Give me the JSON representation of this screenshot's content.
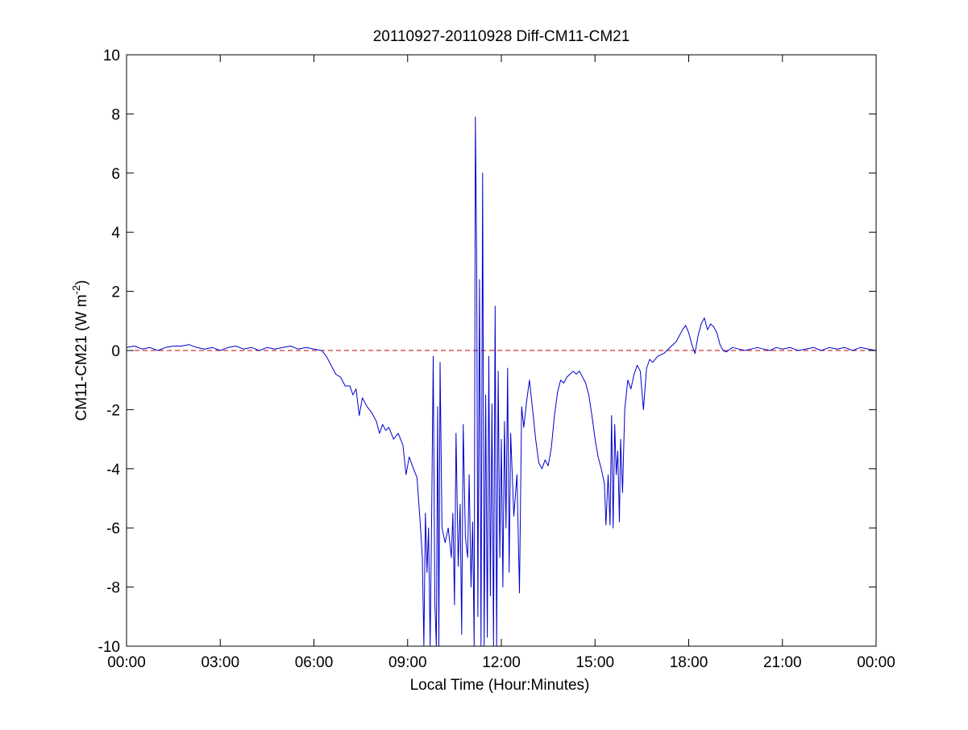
{
  "chart_data": {
    "type": "line",
    "title": "20110927-20110928 Diff-CM11-CM21",
    "xlabel": "Local Time (Hour:Minutes)",
    "ylabel": {
      "main": "CM11-CM21 (W m",
      "superscript": "-2",
      "suffix": ")"
    },
    "x_unit": "hours",
    "xlim": [
      0,
      24
    ],
    "ylim": [
      -10,
      10
    ],
    "x_ticks": [
      0,
      3,
      6,
      9,
      12,
      15,
      18,
      21,
      24
    ],
    "x_tick_labels": [
      "00:00",
      "03:00",
      "06:00",
      "09:00",
      "12:00",
      "15:00",
      "18:00",
      "21:00",
      "00:00"
    ],
    "y_ticks": [
      -10,
      -8,
      -6,
      -4,
      -2,
      0,
      2,
      4,
      6,
      8,
      10
    ],
    "y_tick_labels": [
      "-10",
      "-8",
      "-6",
      "-4",
      "-2",
      "0",
      "2",
      "4",
      "6",
      "8",
      "10"
    ],
    "grid": false,
    "reference_line": {
      "y": 0,
      "style": "dashed",
      "color": "#cc0000"
    },
    "series": [
      {
        "color": "#0000cc",
        "points": [
          [
            0.0,
            0.1
          ],
          [
            0.25,
            0.15
          ],
          [
            0.5,
            0.05
          ],
          [
            0.75,
            0.1
          ],
          [
            1.0,
            0.0
          ],
          [
            1.25,
            0.1
          ],
          [
            1.5,
            0.15
          ],
          [
            1.75,
            0.15
          ],
          [
            2.0,
            0.2
          ],
          [
            2.25,
            0.1
          ],
          [
            2.5,
            0.05
          ],
          [
            2.75,
            0.1
          ],
          [
            3.0,
            0.0
          ],
          [
            3.25,
            0.1
          ],
          [
            3.5,
            0.15
          ],
          [
            3.75,
            0.05
          ],
          [
            4.0,
            0.1
          ],
          [
            4.25,
            0.0
          ],
          [
            4.5,
            0.1
          ],
          [
            4.75,
            0.05
          ],
          [
            5.0,
            0.1
          ],
          [
            5.25,
            0.15
          ],
          [
            5.5,
            0.05
          ],
          [
            5.75,
            0.1
          ],
          [
            6.0,
            0.05
          ],
          [
            6.25,
            0.0
          ],
          [
            6.4,
            -0.2
          ],
          [
            6.55,
            -0.5
          ],
          [
            6.7,
            -0.8
          ],
          [
            6.85,
            -0.9
          ],
          [
            7.0,
            -1.2
          ],
          [
            7.15,
            -1.2
          ],
          [
            7.25,
            -1.5
          ],
          [
            7.35,
            -1.3
          ],
          [
            7.45,
            -2.2
          ],
          [
            7.55,
            -1.6
          ],
          [
            7.7,
            -1.9
          ],
          [
            7.85,
            -2.1
          ],
          [
            8.0,
            -2.4
          ],
          [
            8.1,
            -2.8
          ],
          [
            8.2,
            -2.5
          ],
          [
            8.3,
            -2.7
          ],
          [
            8.4,
            -2.6
          ],
          [
            8.55,
            -3.0
          ],
          [
            8.7,
            -2.8
          ],
          [
            8.85,
            -3.2
          ],
          [
            8.95,
            -4.2
          ],
          [
            9.05,
            -3.6
          ],
          [
            9.15,
            -3.9
          ],
          [
            9.3,
            -4.3
          ],
          [
            9.4,
            -5.8
          ],
          [
            9.47,
            -7.0
          ],
          [
            9.52,
            -10.0
          ],
          [
            9.57,
            -5.5
          ],
          [
            9.62,
            -7.5
          ],
          [
            9.67,
            -6.0
          ],
          [
            9.72,
            -10.0
          ],
          [
            9.77,
            -5.5
          ],
          [
            9.82,
            -0.2
          ],
          [
            9.87,
            -8.5
          ],
          [
            9.92,
            -10.0
          ],
          [
            9.96,
            -1.9
          ],
          [
            10.0,
            -10.0
          ],
          [
            10.04,
            -0.4
          ],
          [
            10.1,
            -6.0
          ],
          [
            10.2,
            -6.5
          ],
          [
            10.3,
            -6.0
          ],
          [
            10.4,
            -7.0
          ],
          [
            10.45,
            -5.5
          ],
          [
            10.5,
            -8.6
          ],
          [
            10.55,
            -2.8
          ],
          [
            10.62,
            -7.3
          ],
          [
            10.68,
            -5.2
          ],
          [
            10.73,
            -9.6
          ],
          [
            10.78,
            -2.5
          ],
          [
            10.85,
            -6.3
          ],
          [
            10.92,
            -7.0
          ],
          [
            10.97,
            -4.2
          ],
          [
            11.03,
            -8.0
          ],
          [
            11.08,
            -5.8
          ],
          [
            11.13,
            -10.0
          ],
          [
            11.17,
            7.9
          ],
          [
            11.21,
            3.2
          ],
          [
            11.25,
            -9.0
          ],
          [
            11.3,
            2.4
          ],
          [
            11.35,
            -10.0
          ],
          [
            11.4,
            6.0
          ],
          [
            11.45,
            -10.0
          ],
          [
            11.5,
            -1.5
          ],
          [
            11.55,
            -9.7
          ],
          [
            11.6,
            -0.2
          ],
          [
            11.65,
            -8.3
          ],
          [
            11.7,
            -1.8
          ],
          [
            11.75,
            -10.0
          ],
          [
            11.8,
            1.5
          ],
          [
            11.85,
            -10.0
          ],
          [
            11.9,
            -0.7
          ],
          [
            11.95,
            -7.0
          ],
          [
            12.0,
            -3.0
          ],
          [
            12.05,
            -8.0
          ],
          [
            12.1,
            -2.4
          ],
          [
            12.15,
            -6.0
          ],
          [
            12.2,
            -0.6
          ],
          [
            12.25,
            -7.5
          ],
          [
            12.3,
            -2.8
          ],
          [
            12.4,
            -5.6
          ],
          [
            12.5,
            -4.2
          ],
          [
            12.58,
            -8.2
          ],
          [
            12.65,
            -1.9
          ],
          [
            12.72,
            -2.6
          ],
          [
            12.8,
            -1.8
          ],
          [
            12.9,
            -1.0
          ],
          [
            13.0,
            -2.0
          ],
          [
            13.1,
            -3.0
          ],
          [
            13.2,
            -3.8
          ],
          [
            13.3,
            -4.0
          ],
          [
            13.4,
            -3.7
          ],
          [
            13.5,
            -3.9
          ],
          [
            13.6,
            -3.3
          ],
          [
            13.7,
            -2.2
          ],
          [
            13.8,
            -1.4
          ],
          [
            13.9,
            -1.0
          ],
          [
            14.0,
            -1.1
          ],
          [
            14.1,
            -0.9
          ],
          [
            14.2,
            -0.8
          ],
          [
            14.3,
            -0.7
          ],
          [
            14.4,
            -0.8
          ],
          [
            14.5,
            -0.7
          ],
          [
            14.6,
            -0.9
          ],
          [
            14.7,
            -1.1
          ],
          [
            14.8,
            -1.5
          ],
          [
            14.9,
            -2.2
          ],
          [
            15.0,
            -3.0
          ],
          [
            15.1,
            -3.6
          ],
          [
            15.2,
            -4.0
          ],
          [
            15.3,
            -4.5
          ],
          [
            15.35,
            -5.9
          ],
          [
            15.42,
            -4.2
          ],
          [
            15.48,
            -5.9
          ],
          [
            15.53,
            -2.2
          ],
          [
            15.58,
            -6.0
          ],
          [
            15.63,
            -2.5
          ],
          [
            15.68,
            -4.2
          ],
          [
            15.73,
            -3.4
          ],
          [
            15.78,
            -5.8
          ],
          [
            15.82,
            -3.0
          ],
          [
            15.88,
            -4.8
          ],
          [
            15.95,
            -2.0
          ],
          [
            16.05,
            -1.0
          ],
          [
            16.15,
            -1.3
          ],
          [
            16.25,
            -0.8
          ],
          [
            16.35,
            -0.5
          ],
          [
            16.45,
            -0.7
          ],
          [
            16.55,
            -2.0
          ],
          [
            16.65,
            -0.6
          ],
          [
            16.75,
            -0.3
          ],
          [
            16.85,
            -0.4
          ],
          [
            17.0,
            -0.2
          ],
          [
            17.2,
            -0.1
          ],
          [
            17.4,
            0.1
          ],
          [
            17.6,
            0.3
          ],
          [
            17.8,
            0.7
          ],
          [
            17.9,
            0.85
          ],
          [
            18.0,
            0.6
          ],
          [
            18.1,
            0.2
          ],
          [
            18.2,
            -0.1
          ],
          [
            18.3,
            0.5
          ],
          [
            18.4,
            0.9
          ],
          [
            18.5,
            1.1
          ],
          [
            18.6,
            0.7
          ],
          [
            18.7,
            0.9
          ],
          [
            18.8,
            0.8
          ],
          [
            18.9,
            0.6
          ],
          [
            19.0,
            0.2
          ],
          [
            19.1,
            0.0
          ],
          [
            19.2,
            -0.05
          ],
          [
            19.4,
            0.1
          ],
          [
            19.6,
            0.05
          ],
          [
            19.8,
            0.0
          ],
          [
            20.0,
            0.05
          ],
          [
            20.2,
            0.1
          ],
          [
            20.4,
            0.05
          ],
          [
            20.6,
            0.0
          ],
          [
            20.8,
            0.1
          ],
          [
            21.0,
            0.05
          ],
          [
            21.25,
            0.1
          ],
          [
            21.5,
            0.0
          ],
          [
            21.75,
            0.05
          ],
          [
            22.0,
            0.1
          ],
          [
            22.25,
            0.0
          ],
          [
            22.5,
            0.1
          ],
          [
            22.75,
            0.05
          ],
          [
            23.0,
            0.1
          ],
          [
            23.25,
            0.0
          ],
          [
            23.5,
            0.1
          ],
          [
            23.75,
            0.05
          ],
          [
            24.0,
            0.0
          ]
        ]
      }
    ]
  }
}
